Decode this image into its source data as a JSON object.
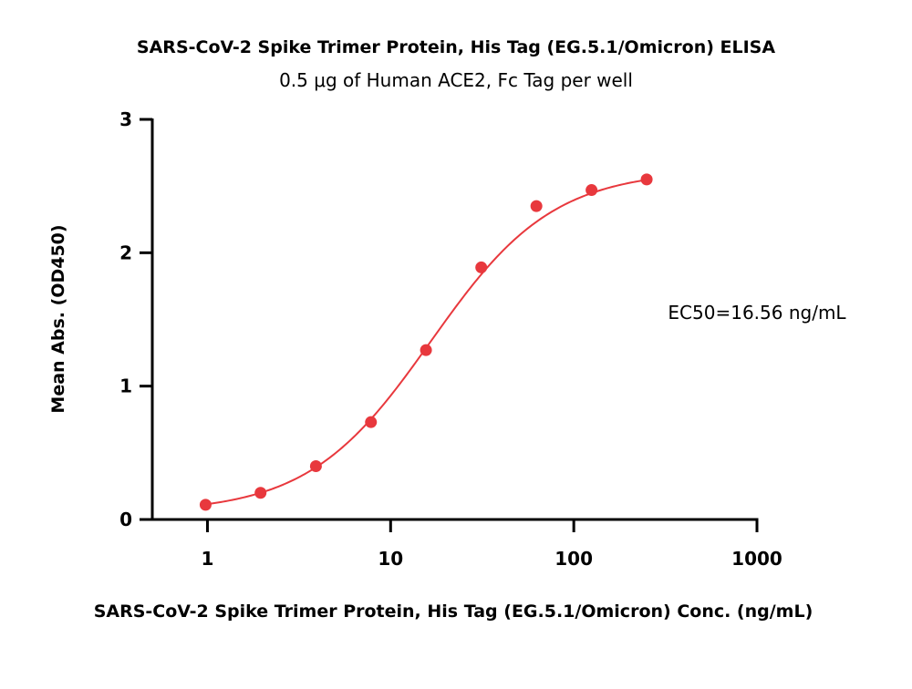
{
  "chart_data": {
    "type": "scatter",
    "title": "SARS-CoV-2 Spike Trimer Protein, His Tag (EG.5.1/Omicron) ELISA",
    "subtitle": "0.5 μg of Human ACE2, Fc Tag per well",
    "xlabel": "SARS-CoV-2 Spike Trimer Protein, His Tag (EG.5.1/Omicron) Conc. (ng/mL)",
    "ylabel": "Mean Abs. (OD450)",
    "x_scale": "log",
    "xlim": [
      0.5,
      1000
    ],
    "ylim": [
      0,
      3
    ],
    "x_ticks": [
      1,
      10,
      100,
      1000
    ],
    "x_tick_labels": [
      "1",
      "10",
      "100",
      "1000"
    ],
    "y_ticks": [
      0,
      1,
      2,
      3
    ],
    "y_tick_labels": [
      "0",
      "1",
      "2",
      "3"
    ],
    "grid": false,
    "annotation": "EC50=16.56 ng/mL",
    "colors": {
      "series": "#e8383d",
      "axis": "#000000"
    },
    "series": [
      {
        "x": [
          0.977,
          1.95,
          3.91,
          7.81,
          15.6,
          31.25,
          62.5,
          125,
          250
        ],
        "y": [
          0.11,
          0.2,
          0.4,
          0.73,
          1.27,
          1.89,
          2.35,
          2.47,
          2.55
        ]
      }
    ],
    "fit": {
      "model": "4PL",
      "bottom": 0.05,
      "top": 2.62,
      "ec50": 16.56,
      "hill": 1.3
    }
  }
}
